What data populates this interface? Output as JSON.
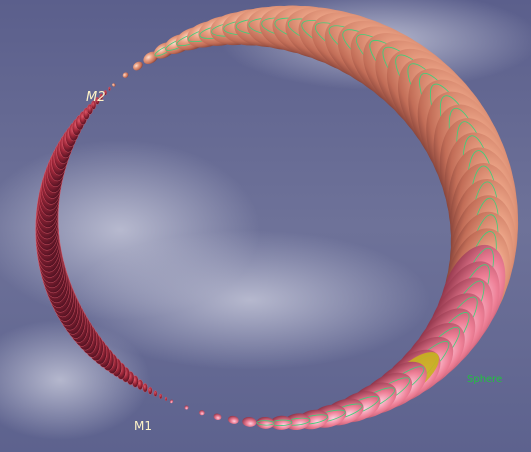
{
  "labels": {
    "m2": "M2",
    "m1": "M1",
    "sphere": "Sphere"
  }
}
